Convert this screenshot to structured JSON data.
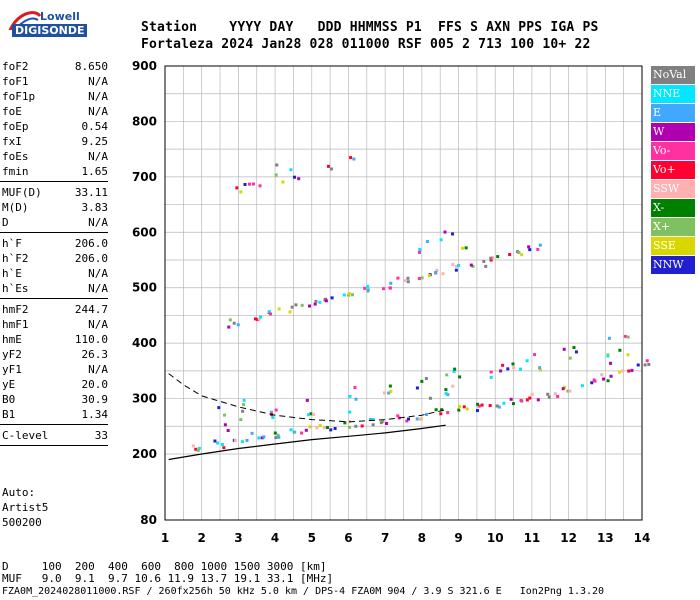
{
  "logo": {
    "line1": "Lowell",
    "line2": "DIGISONDE"
  },
  "header": {
    "labels": "Station    YYYY DAY   DDD HHMMSS P1  FFS S AXN PPS IGA PS",
    "values": "Fortaleza 2024 Jan28 028 011000 RSF 005 2 713 100 10+ 22"
  },
  "params": [
    {
      "name": "foF2",
      "value": "8.650"
    },
    {
      "name": "foF1",
      "value": "N/A"
    },
    {
      "name": "foF1p",
      "value": "N/A"
    },
    {
      "name": "foE",
      "value": "N/A"
    },
    {
      "name": "foEp",
      "value": "0.54"
    },
    {
      "name": "fxI",
      "value": "9.25"
    },
    {
      "name": "foEs",
      "value": "N/A"
    },
    {
      "name": "fmin",
      "value": "1.65"
    },
    {
      "name": "MUF(D)",
      "value": "33.11"
    },
    {
      "name": "M(D)",
      "value": "3.83"
    },
    {
      "name": "D",
      "value": "N/A"
    },
    {
      "name": "h`F",
      "value": "206.0"
    },
    {
      "name": "h`F2",
      "value": "206.0"
    },
    {
      "name": "h`E",
      "value": "N/A"
    },
    {
      "name": "h`Es",
      "value": "N/A"
    },
    {
      "name": "hmF2",
      "value": "244.7"
    },
    {
      "name": "hmF1",
      "value": "N/A"
    },
    {
      "name": "hmE",
      "value": "110.0"
    },
    {
      "name": "yF2",
      "value": "26.3"
    },
    {
      "name": "yF1",
      "value": "N/A"
    },
    {
      "name": "yE",
      "value": "20.0"
    },
    {
      "name": "B0",
      "value": "30.9"
    },
    {
      "name": "B1",
      "value": "1.34"
    },
    {
      "name": "C-level",
      "value": "33"
    }
  ],
  "auto": {
    "line1": "Auto:",
    "line2": "Artist5",
    "line3": "500200"
  },
  "legend": [
    {
      "label": "NoVal",
      "color": "#808080"
    },
    {
      "label": "NNE",
      "color": "#00e8ff"
    },
    {
      "label": "E",
      "color": "#40a8ff"
    },
    {
      "label": "W",
      "color": "#b000b0"
    },
    {
      "label": "Vo-",
      "color": "#ff30a0"
    },
    {
      "label": "Vo+",
      "color": "#ff0030"
    },
    {
      "label": "SSW",
      "color": "#ffb0b0"
    },
    {
      "label": "X-",
      "color": "#008000"
    },
    {
      "label": "X+",
      "color": "#80c060"
    },
    {
      "label": "SSE",
      "color": "#d8d800"
    },
    {
      "label": "NNW",
      "color": "#2020d0"
    }
  ],
  "chart_data": {
    "type": "scatter",
    "title": "",
    "xlabel": "",
    "ylabel": "",
    "xlim": [
      1,
      14
    ],
    "ylim": [
      80,
      900
    ],
    "x_ticks": [
      "1",
      "2",
      "3",
      "4",
      "5",
      "6",
      "7",
      "8",
      "9",
      "10",
      "11",
      "12",
      "13",
      "14"
    ],
    "y_ticks": [
      "80",
      "200",
      "300",
      "400",
      "500",
      "600",
      "700",
      "800",
      "900"
    ],
    "grid": true,
    "traces": [
      {
        "name": "lower F trace",
        "points": [
          [
            1.9,
            212
          ],
          [
            2.5,
            220
          ],
          [
            3,
            228
          ],
          [
            3.5,
            234
          ],
          [
            4,
            238
          ],
          [
            4.5,
            243
          ],
          [
            5,
            248
          ],
          [
            5.5,
            252
          ],
          [
            6,
            256
          ],
          [
            6.5,
            260
          ],
          [
            7,
            264
          ],
          [
            7.5,
            268
          ],
          [
            8,
            272
          ],
          [
            8.5,
            277
          ],
          [
            9,
            282
          ],
          [
            9.5,
            287
          ],
          [
            10,
            292
          ],
          [
            10.5,
            298
          ],
          [
            11,
            305
          ],
          [
            11.5,
            312
          ],
          [
            12,
            320
          ],
          [
            12.5,
            330
          ],
          [
            13,
            340
          ],
          [
            13.5,
            352
          ],
          [
            14,
            365
          ]
        ]
      },
      {
        "name": "upper F trace",
        "points": [
          [
            2.8,
            438
          ],
          [
            3.5,
            450
          ],
          [
            4,
            458
          ],
          [
            4.5,
            466
          ],
          [
            5,
            475
          ],
          [
            5.5,
            484
          ],
          [
            6,
            492
          ],
          [
            6.5,
            500
          ],
          [
            7,
            508
          ],
          [
            7.5,
            516
          ],
          [
            8,
            522
          ],
          [
            8.5,
            530
          ],
          [
            9,
            538
          ],
          [
            9.5,
            548
          ],
          [
            10,
            556
          ],
          [
            10.5,
            565
          ],
          [
            11,
            574
          ]
        ]
      },
      {
        "name": "echo cluster low band",
        "points": [
          [
            2.5,
            270
          ],
          [
            3,
            275
          ],
          [
            4,
            285
          ],
          [
            5,
            295
          ],
          [
            6,
            300
          ],
          [
            7,
            305
          ],
          [
            8,
            315
          ],
          [
            8.5,
            330
          ],
          [
            9,
            340
          ],
          [
            10,
            360
          ],
          [
            10.5,
            370
          ],
          [
            11,
            375
          ],
          [
            12,
            380
          ],
          [
            13,
            390
          ],
          [
            13.5,
            400
          ]
        ]
      },
      {
        "name": "upper echoes",
        "points": [
          [
            3,
            680
          ],
          [
            3.3,
            685
          ],
          [
            3.5,
            690
          ],
          [
            4,
            700
          ],
          [
            4.2,
            720
          ],
          [
            4.5,
            705
          ],
          [
            5.5,
            720
          ],
          [
            6,
            735
          ],
          [
            8,
            570
          ],
          [
            8.3,
            590
          ],
          [
            8.6,
            600
          ],
          [
            9,
            580
          ]
        ]
      }
    ],
    "profile_solid": [
      [
        1.1,
        190
      ],
      [
        2,
        200
      ],
      [
        3,
        210
      ],
      [
        4,
        218
      ],
      [
        5,
        226
      ],
      [
        6,
        232
      ],
      [
        7,
        238
      ],
      [
        8,
        246
      ],
      [
        8.65,
        252
      ]
    ],
    "profile_dashed": [
      [
        1.1,
        345
      ],
      [
        1.5,
        325
      ],
      [
        2,
        305
      ],
      [
        3,
        285
      ],
      [
        4,
        270
      ],
      [
        5,
        262
      ],
      [
        6,
        258
      ],
      [
        7,
        262
      ],
      [
        8,
        270
      ],
      [
        8.65,
        280
      ]
    ],
    "annotations": []
  },
  "footer": {
    "d_line": "D     100  200  400  600  800 1000 1500 3000 [km]",
    "muf_line": "MUF   9.0  9.1  9.7 10.6 11.9 13.7 19.1 33.1 [MHz]",
    "file_line": "FZA0M_2024028011000.RSF / 260fx256h 50 kHz 5.0 km / DPS-4 FZA0M 904 / 3.9 S 321.6 E   Ion2Png 1.3.20"
  }
}
